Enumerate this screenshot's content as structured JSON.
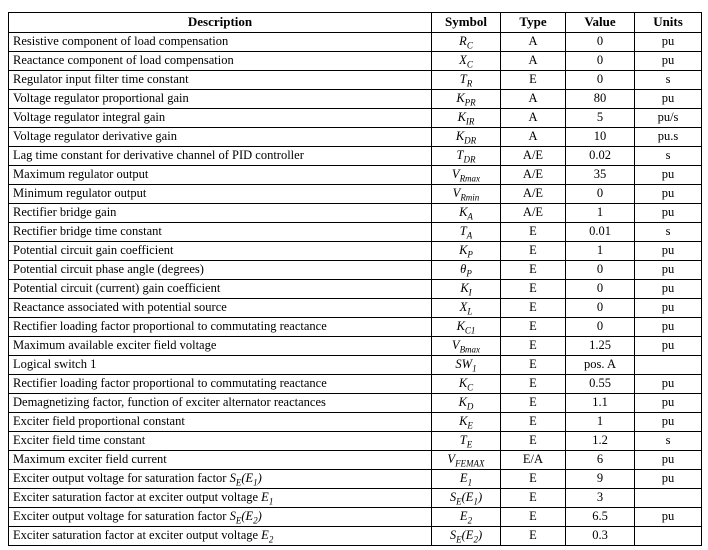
{
  "page": {
    "background_color": "#ffffff",
    "text_color": "#000000",
    "border_color": "#000000"
  },
  "table": {
    "headers": [
      "Description",
      "Symbol",
      "Type",
      "Value",
      "Units"
    ],
    "rows": [
      {
        "desc": "Resistive component of load compensation",
        "descMath": "",
        "symbol": "R_{C}",
        "type": "A",
        "value": "0",
        "units": "pu"
      },
      {
        "desc": "Reactance component of load compensation",
        "descMath": "",
        "symbol": "X_{C}",
        "type": "A",
        "value": "0",
        "units": "pu"
      },
      {
        "desc": "Regulator input filter time constant",
        "descMath": "",
        "symbol": "T_{R}",
        "type": "E",
        "value": "0",
        "units": "s"
      },
      {
        "desc": "Voltage regulator proportional gain",
        "descMath": "",
        "symbol": "K_{PR}",
        "type": "A",
        "value": "80",
        "units": "pu"
      },
      {
        "desc": "Voltage regulator integral gain",
        "descMath": "",
        "symbol": "K_{IR}",
        "type": "A",
        "value": "5",
        "units": "pu/s"
      },
      {
        "desc": "Voltage regulator derivative gain",
        "descMath": "",
        "symbol": "K_{DR}",
        "type": "A",
        "value": "10",
        "units": "pu.s"
      },
      {
        "desc": "Lag time constant for derivative channel of PID controller",
        "descMath": "",
        "symbol": "T_{DR}",
        "type": "A/E",
        "value": "0.02",
        "units": "s"
      },
      {
        "desc": "Maximum regulator output",
        "descMath": "",
        "symbol": "V_{Rmax}",
        "type": "A/E",
        "value": "35",
        "units": "pu"
      },
      {
        "desc": "Minimum regulator output",
        "descMath": "",
        "symbol": "V_{Rmin}",
        "type": "A/E",
        "value": "0",
        "units": "pu"
      },
      {
        "desc": "Rectifier bridge gain",
        "descMath": "",
        "symbol": "K_{A}",
        "type": "A/E",
        "value": "1",
        "units": "pu"
      },
      {
        "desc": "Rectifier bridge time constant",
        "descMath": "",
        "symbol": "T_{A}",
        "type": "E",
        "value": "0.01",
        "units": "s"
      },
      {
        "desc": "Potential circuit gain coefficient",
        "descMath": "",
        "symbol": "K_{P}",
        "type": "E",
        "value": "1",
        "units": "pu"
      },
      {
        "desc": "Potential circuit phase angle (degrees)",
        "descMath": "",
        "symbol": "θ_{P}",
        "type": "E",
        "value": "0",
        "units": "pu"
      },
      {
        "desc": "Potential circuit (current) gain coefficient",
        "descMath": "",
        "symbol": "K_{I}",
        "type": "E",
        "value": "0",
        "units": "pu"
      },
      {
        "desc": "Reactance associated with potential source",
        "descMath": "",
        "symbol": "X_{L}",
        "type": "E",
        "value": "0",
        "units": "pu"
      },
      {
        "desc": "Rectifier loading factor proportional to commutating reactance",
        "descMath": "",
        "symbol": "K_{C1}",
        "type": "E",
        "value": "0",
        "units": "pu"
      },
      {
        "desc": "Maximum available exciter field voltage",
        "descMath": "",
        "symbol": "V_{Bmax}",
        "type": "E",
        "value": "1.25",
        "units": "pu"
      },
      {
        "desc": "Logical switch 1",
        "descMath": "",
        "symbol": "SW_{1}",
        "type": "E",
        "value": "pos. A",
        "units": ""
      },
      {
        "desc": "Rectifier loading factor proportional to commutating reactance",
        "descMath": "",
        "symbol": "K_{C}",
        "type": "E",
        "value": "0.55",
        "units": "pu"
      },
      {
        "desc": "Demagnetizing factor, function of exciter alternator reactances",
        "descMath": "",
        "symbol": "K_{D}",
        "type": "E",
        "value": "1.1",
        "units": "pu"
      },
      {
        "desc": "Exciter field proportional constant",
        "descMath": "",
        "symbol": "K_{E}",
        "type": "E",
        "value": "1",
        "units": "pu"
      },
      {
        "desc": "Exciter field time constant",
        "descMath": "",
        "symbol": "T_{E}",
        "type": "E",
        "value": "1.2",
        "units": "s"
      },
      {
        "desc": "Maximum exciter field current",
        "descMath": "",
        "symbol": "V_{FEMAX}",
        "type": "E/A",
        "value": "6",
        "units": "pu"
      },
      {
        "desc": "Exciter output voltage for saturation factor ",
        "descMath": "S_{E}(E_{1})",
        "symbol": "E_{1}",
        "type": "E",
        "value": "9",
        "units": "pu"
      },
      {
        "desc": "Exciter saturation factor at exciter output voltage ",
        "descMath": "E_{1}",
        "symbol": "S_{E}(E_{1})",
        "type": "E",
        "value": "3",
        "units": ""
      },
      {
        "desc": "Exciter output voltage for saturation factor ",
        "descMath": "S_{E}(E_{2})",
        "symbol": "E_{2}",
        "type": "E",
        "value": "6.5",
        "units": "pu"
      },
      {
        "desc": "Exciter saturation factor at exciter output voltage ",
        "descMath": "E_{2}",
        "symbol": "S_{E}(E_{2})",
        "type": "E",
        "value": "0.3",
        "units": ""
      }
    ]
  }
}
